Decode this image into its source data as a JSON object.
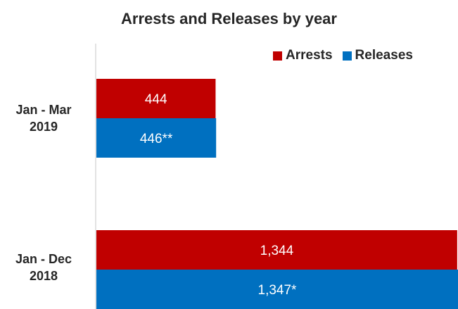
{
  "chart_data": {
    "type": "bar",
    "orientation": "horizontal",
    "title": "Arrests and Releases by year",
    "categories": [
      "Jan - Mar 2019",
      "Jan - Dec 2018"
    ],
    "category_lines": [
      [
        "Jan - Mar",
        "2019"
      ],
      [
        "Jan - Dec",
        "2018"
      ]
    ],
    "series": [
      {
        "name": "Arrests",
        "color": "#c00000",
        "values": [
          444,
          1344
        ],
        "labels": [
          "444",
          "1,344"
        ]
      },
      {
        "name": "Releases",
        "color": "#0070c0",
        "values": [
          446,
          1347
        ],
        "labels": [
          "446**",
          "1,347*"
        ]
      }
    ],
    "xlim": [
      0,
      1347
    ],
    "legend": "top-right",
    "grid": false
  }
}
